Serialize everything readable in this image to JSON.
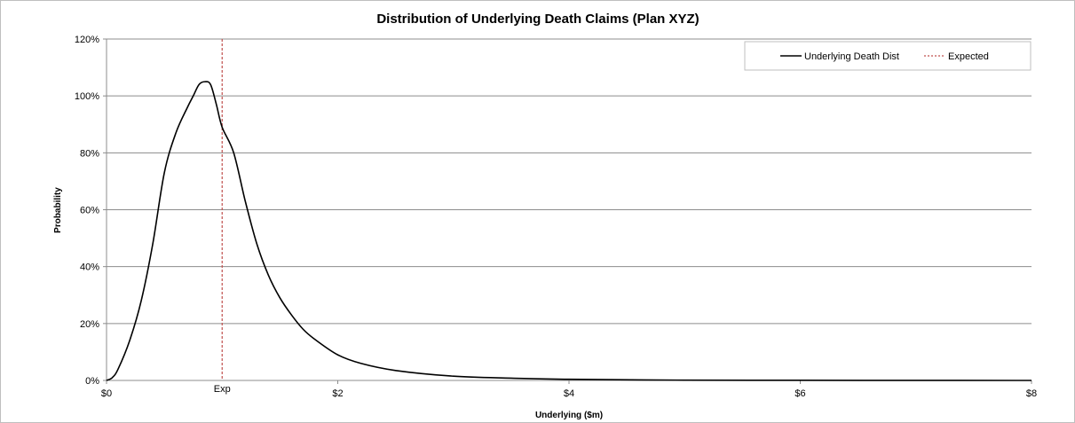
{
  "chart_data": {
    "type": "line",
    "title": "Distribution of Underlying Death Claims (Plan XYZ)",
    "xlabel": "Underlying ($m)",
    "ylabel": "Probability",
    "xlim": [
      0,
      8
    ],
    "ylim": [
      0,
      1.2
    ],
    "x_ticks": [
      0,
      2,
      4,
      6,
      8
    ],
    "x_tick_labels": [
      "$0",
      "$2",
      "$4",
      "$6",
      "$8"
    ],
    "y_ticks": [
      0,
      0.2,
      0.4,
      0.6,
      0.8,
      1.0,
      1.2
    ],
    "y_tick_labels": [
      "0%",
      "20%",
      "40%",
      "60%",
      "80%",
      "100%",
      "120%"
    ],
    "grid": "horizontal",
    "legend_position": "top-right",
    "colors": {
      "dist": "#000000",
      "expected": "#c0504d",
      "grid": "#8c8c8c"
    },
    "series": [
      {
        "name": "Underlying Death Dist",
        "x": [
          0,
          0.05,
          0.1,
          0.2,
          0.3,
          0.4,
          0.5,
          0.6,
          0.7,
          0.75,
          0.8,
          0.85,
          0.9,
          0.95,
          1.0,
          1.1,
          1.2,
          1.3,
          1.4,
          1.5,
          1.6,
          1.7,
          1.8,
          2.0,
          2.2,
          2.5,
          3.0,
          3.5,
          4.0,
          5.0,
          6.0,
          7.0,
          8.0
        ],
        "y": [
          0.0,
          0.01,
          0.04,
          0.14,
          0.28,
          0.48,
          0.73,
          0.87,
          0.96,
          1.0,
          1.04,
          1.05,
          1.04,
          0.97,
          0.89,
          0.8,
          0.63,
          0.48,
          0.37,
          0.29,
          0.23,
          0.18,
          0.145,
          0.09,
          0.06,
          0.035,
          0.015,
          0.008,
          0.004,
          0.001,
          0.0005,
          0.0002,
          0.0
        ]
      },
      {
        "name": "Expected",
        "x_value": 1.0,
        "label": "Exp"
      }
    ]
  }
}
